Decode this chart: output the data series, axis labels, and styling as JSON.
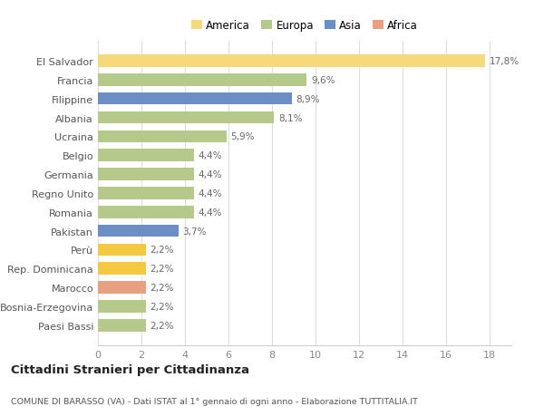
{
  "categories": [
    "Paesi Bassi",
    "Bosnia-Erzegovina",
    "Marocco",
    "Rep. Dominicana",
    "Perù",
    "Pakistan",
    "Romania",
    "Regno Unito",
    "Germania",
    "Belgio",
    "Ucraina",
    "Albania",
    "Filippine",
    "Francia",
    "El Salvador"
  ],
  "values": [
    2.2,
    2.2,
    2.2,
    2.2,
    2.2,
    3.7,
    4.4,
    4.4,
    4.4,
    4.4,
    5.9,
    8.1,
    8.9,
    9.6,
    17.8
  ],
  "labels": [
    "2,2%",
    "2,2%",
    "2,2%",
    "2,2%",
    "2,2%",
    "3,7%",
    "4,4%",
    "4,4%",
    "4,4%",
    "4,4%",
    "5,9%",
    "8,1%",
    "8,9%",
    "9,6%",
    "17,8%"
  ],
  "colors": [
    "#b5c98a",
    "#b5c98a",
    "#e8a080",
    "#f5c842",
    "#f5c842",
    "#6b8fc4",
    "#b5c98a",
    "#b5c98a",
    "#b5c98a",
    "#b5c98a",
    "#b5c98a",
    "#b5c98a",
    "#6b8fc4",
    "#b5c98a",
    "#f5d97a"
  ],
  "legend": [
    {
      "label": "America",
      "color": "#f5d97a"
    },
    {
      "label": "Europa",
      "color": "#b5c98a"
    },
    {
      "label": "Asia",
      "color": "#6b8fc4"
    },
    {
      "label": "Africa",
      "color": "#e8a080"
    }
  ],
  "title": "Cittadini Stranieri per Cittadinanza",
  "subtitle": "COMUNE DI BARASSO (VA) - Dati ISTAT al 1° gennaio di ogni anno - Elaborazione TUTTITALIA.IT",
  "xlim": [
    0,
    19
  ],
  "xticks": [
    0,
    2,
    4,
    6,
    8,
    10,
    12,
    14,
    16,
    18
  ],
  "background_color": "#ffffff",
  "bar_height": 0.65,
  "grid_color": "#dddddd"
}
